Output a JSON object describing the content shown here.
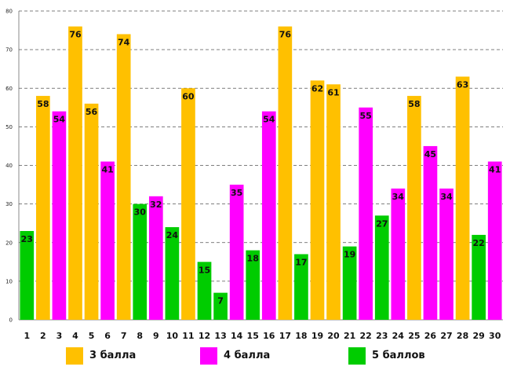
{
  "chart_data": {
    "type": "bar",
    "title": "",
    "xlabel": "",
    "ylabel": "",
    "ylim": [
      0,
      80
    ],
    "yticks": [
      0,
      10,
      20,
      30,
      40,
      50,
      60,
      70,
      80
    ],
    "grid": true,
    "legend_position": "bottom",
    "series": [
      {
        "name": "3 балла",
        "color": "#ffc000"
      },
      {
        "name": "4 балла",
        "color": "#ff00ff"
      },
      {
        "name": "5 баллов",
        "color": "#00cc00"
      }
    ],
    "bars": [
      {
        "category": "1",
        "value": 23,
        "series": "5 баллов"
      },
      {
        "category": "2",
        "value": 58,
        "series": "3 балла"
      },
      {
        "category": "3",
        "value": 54,
        "series": "4 балла"
      },
      {
        "category": "4",
        "value": 76,
        "series": "3 балла"
      },
      {
        "category": "5",
        "value": 56,
        "series": "3 балла"
      },
      {
        "category": "6",
        "value": 41,
        "series": "4 балла"
      },
      {
        "category": "7",
        "value": 74,
        "series": "3 балла"
      },
      {
        "category": "8",
        "value": 30,
        "series": "5 баллов"
      },
      {
        "category": "9",
        "value": 32,
        "series": "4 балла"
      },
      {
        "category": "10",
        "value": 24,
        "series": "5 баллов"
      },
      {
        "category": "11",
        "value": 60,
        "series": "3 балла"
      },
      {
        "category": "12",
        "value": 15,
        "series": "5 баллов"
      },
      {
        "category": "13",
        "value": 7,
        "series": "5 баллов"
      },
      {
        "category": "14",
        "value": 35,
        "series": "4 балла"
      },
      {
        "category": "15",
        "value": 18,
        "series": "5 баллов"
      },
      {
        "category": "16",
        "value": 54,
        "series": "4 балла"
      },
      {
        "category": "17",
        "value": 76,
        "series": "3 балла"
      },
      {
        "category": "18",
        "value": 17,
        "series": "5 баллов"
      },
      {
        "category": "19",
        "value": 62,
        "series": "3 балла"
      },
      {
        "category": "20",
        "value": 61,
        "series": "3 балла"
      },
      {
        "category": "21",
        "value": 19,
        "series": "5 баллов"
      },
      {
        "category": "22",
        "value": 55,
        "series": "4 балла"
      },
      {
        "category": "23",
        "value": 27,
        "series": "5 баллов"
      },
      {
        "category": "24",
        "value": 34,
        "series": "4 балла"
      },
      {
        "category": "25",
        "value": 58,
        "series": "3 балла"
      },
      {
        "category": "26",
        "value": 45,
        "series": "4 балла"
      },
      {
        "category": "27",
        "value": 34,
        "series": "4 балла"
      },
      {
        "category": "28",
        "value": 63,
        "series": "3 балла"
      },
      {
        "category": "29",
        "value": 22,
        "series": "5 баллов"
      },
      {
        "category": "30",
        "value": 41,
        "series": "4 балла"
      }
    ]
  }
}
